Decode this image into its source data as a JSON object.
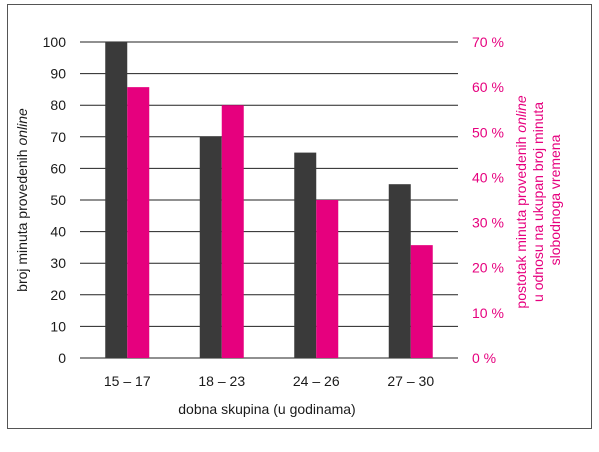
{
  "chart_data": {
    "type": "bar",
    "categories": [
      "15 – 17",
      "18 – 23",
      "24 – 26",
      "27 – 30"
    ],
    "series": [
      {
        "axis": "left",
        "values": [
          100,
          70,
          65,
          55
        ],
        "color": "#3a3a3a"
      },
      {
        "axis": "right",
        "values": [
          60,
          56,
          35,
          25
        ],
        "color": "#e6007e"
      }
    ],
    "xlabel": "dobna skupina (u godinama)",
    "ylabel": {
      "before": "broj minuta provedenih ",
      "italic": "online"
    },
    "y2label": {
      "line1_before": "postotak minuta provedenih ",
      "line1_italic": "online",
      "line2": "u odnosu na ukupan broj minuta",
      "line3": "slobodnoga vremena"
    },
    "ylim": [
      0,
      100
    ],
    "yticks": [
      "0",
      "10",
      "20",
      "30",
      "40",
      "50",
      "60",
      "70",
      "80",
      "90",
      "100"
    ],
    "y2lim": [
      0,
      70
    ],
    "y2ticks": [
      "0 %",
      "10 %",
      "20 %",
      "30 %",
      "40 %",
      "50 %",
      "60 %",
      "70 %"
    ],
    "grid": true,
    "colors": {
      "axis_left_text": "#1a1a1a",
      "axis_right_text": "#e6007e",
      "grid": "#222222"
    }
  }
}
